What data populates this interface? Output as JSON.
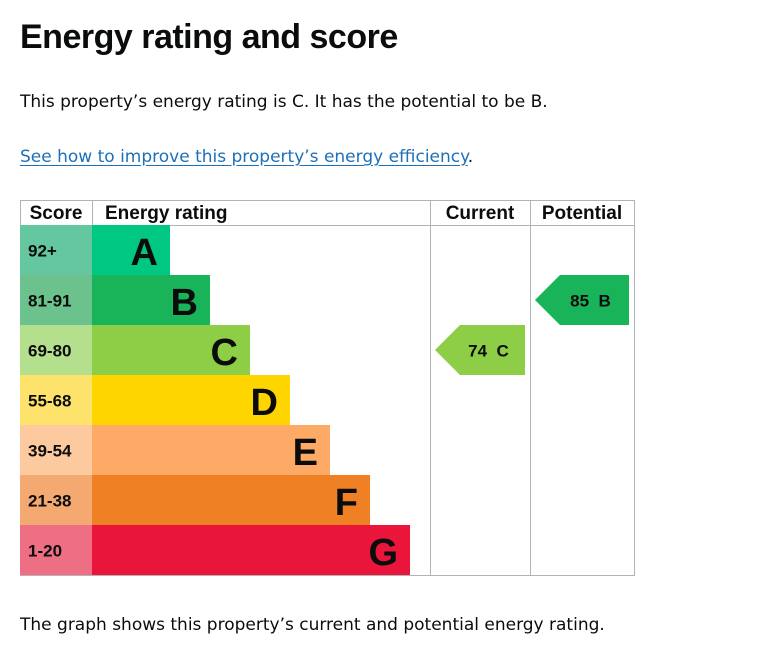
{
  "page": {
    "title": "Energy rating and score",
    "summary": "This property’s energy rating is C. It has the potential to be B.",
    "link_text": "See how to improve this property’s energy efficiency",
    "link_suffix": ".",
    "caption": "The graph shows this property’s current and potential energy rating."
  },
  "chart_data": {
    "type": "table",
    "headers": {
      "score": "Score",
      "rating": "Energy rating",
      "current": "Current",
      "potential": "Potential"
    },
    "bands": [
      {
        "score": "92+",
        "letter": "A",
        "color": "#00c781",
        "score_color": "#64c7a0"
      },
      {
        "score": "81-91",
        "letter": "B",
        "color": "#19b459",
        "score_color": "#6cc28c"
      },
      {
        "score": "69-80",
        "letter": "C",
        "color": "#8dce46",
        "score_color": "#b4df8c"
      },
      {
        "score": "55-68",
        "letter": "D",
        "color": "#ffd500",
        "score_color": "#fde36b"
      },
      {
        "score": "39-54",
        "letter": "E",
        "color": "#fcaa65",
        "score_color": "#fdc99e"
      },
      {
        "score": "21-38",
        "letter": "F",
        "color": "#ef8023",
        "score_color": "#f4a970"
      },
      {
        "score": "1-20",
        "letter": "G",
        "color": "#e9153b",
        "score_color": "#ee6f84"
      }
    ],
    "current": {
      "score": 74,
      "letter": "C",
      "label": "74  C",
      "color": "#8dce46"
    },
    "potential": {
      "score": 85,
      "letter": "B",
      "label": "85  B",
      "color": "#19b459"
    }
  }
}
